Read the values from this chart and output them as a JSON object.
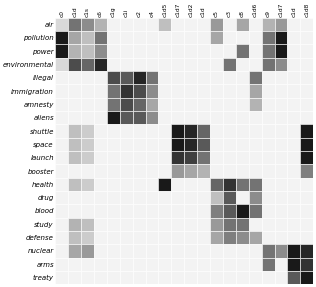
{
  "row_labels": [
    "air",
    "pollution",
    "power",
    "environmental",
    "illegal",
    "immigration",
    "amnesty",
    "aliens",
    "shuttle",
    "space",
    "launch",
    "booster",
    "health",
    "drug",
    "blood",
    "study",
    "defense",
    "nuclear",
    "arms",
    "treaty"
  ],
  "col_labels_display": [
    "c0",
    "c1d",
    "c1s",
    "c6",
    "c1g",
    "c1i",
    "c2",
    "c4",
    "c1d5",
    "c1d7",
    "c1d2",
    "c1d",
    "c5",
    "c3",
    "c8",
    "c1d6",
    "c9",
    "c1d7",
    "c1d",
    "c1d8"
  ],
  "matrix": [
    [
      0.15,
      0.55,
      0.45,
      0.3,
      0.05,
      0.05,
      0.05,
      0.05,
      0.25,
      0.05,
      0.05,
      0.05,
      0.4,
      0.05,
      0.35,
      0.05,
      0.3,
      0.4,
      0.05,
      0.05
    ],
    [
      0.9,
      0.35,
      0.25,
      0.55,
      0.05,
      0.05,
      0.05,
      0.05,
      0.05,
      0.05,
      0.05,
      0.05,
      0.35,
      0.05,
      0.05,
      0.05,
      0.55,
      0.9,
      0.05,
      0.05
    ],
    [
      0.9,
      0.3,
      0.25,
      0.45,
      0.05,
      0.05,
      0.05,
      0.05,
      0.05,
      0.05,
      0.05,
      0.05,
      0.05,
      0.05,
      0.55,
      0.05,
      0.55,
      0.9,
      0.05,
      0.05
    ],
    [
      0.15,
      0.7,
      0.6,
      0.85,
      0.05,
      0.05,
      0.05,
      0.05,
      0.05,
      0.05,
      0.05,
      0.05,
      0.05,
      0.55,
      0.05,
      0.05,
      0.55,
      0.45,
      0.05,
      0.05
    ],
    [
      0.05,
      0.05,
      0.05,
      0.05,
      0.7,
      0.65,
      0.85,
      0.55,
      0.05,
      0.05,
      0.05,
      0.05,
      0.05,
      0.05,
      0.05,
      0.55,
      0.05,
      0.05,
      0.05,
      0.05
    ],
    [
      0.05,
      0.05,
      0.05,
      0.05,
      0.55,
      0.8,
      0.7,
      0.45,
      0.05,
      0.05,
      0.05,
      0.05,
      0.05,
      0.05,
      0.05,
      0.35,
      0.05,
      0.05,
      0.05,
      0.05
    ],
    [
      0.05,
      0.05,
      0.05,
      0.05,
      0.55,
      0.7,
      0.6,
      0.35,
      0.05,
      0.05,
      0.05,
      0.05,
      0.05,
      0.05,
      0.05,
      0.3,
      0.05,
      0.05,
      0.05,
      0.05
    ],
    [
      0.05,
      0.05,
      0.05,
      0.05,
      0.9,
      0.65,
      0.65,
      0.45,
      0.05,
      0.05,
      0.05,
      0.05,
      0.05,
      0.05,
      0.05,
      0.05,
      0.05,
      0.05,
      0.05,
      0.05
    ],
    [
      0.05,
      0.25,
      0.2,
      0.05,
      0.05,
      0.05,
      0.05,
      0.05,
      0.05,
      0.9,
      0.85,
      0.6,
      0.05,
      0.05,
      0.05,
      0.05,
      0.05,
      0.05,
      0.05,
      0.9
    ],
    [
      0.05,
      0.25,
      0.2,
      0.05,
      0.05,
      0.05,
      0.05,
      0.05,
      0.05,
      0.9,
      0.85,
      0.65,
      0.05,
      0.05,
      0.05,
      0.05,
      0.05,
      0.05,
      0.05,
      0.9
    ],
    [
      0.05,
      0.25,
      0.2,
      0.05,
      0.05,
      0.05,
      0.05,
      0.05,
      0.05,
      0.8,
      0.75,
      0.55,
      0.05,
      0.05,
      0.05,
      0.05,
      0.05,
      0.05,
      0.05,
      0.9
    ],
    [
      0.05,
      0.05,
      0.05,
      0.05,
      0.05,
      0.05,
      0.05,
      0.05,
      0.05,
      0.4,
      0.35,
      0.3,
      0.05,
      0.05,
      0.05,
      0.05,
      0.05,
      0.05,
      0.05,
      0.5
    ],
    [
      0.05,
      0.25,
      0.2,
      0.05,
      0.05,
      0.05,
      0.05,
      0.05,
      0.9,
      0.05,
      0.05,
      0.05,
      0.6,
      0.8,
      0.55,
      0.55,
      0.05,
      0.05,
      0.05,
      0.05
    ],
    [
      0.05,
      0.05,
      0.05,
      0.05,
      0.05,
      0.05,
      0.05,
      0.05,
      0.05,
      0.05,
      0.05,
      0.05,
      0.25,
      0.65,
      0.05,
      0.45,
      0.05,
      0.05,
      0.05,
      0.05
    ],
    [
      0.05,
      0.05,
      0.05,
      0.05,
      0.05,
      0.05,
      0.05,
      0.05,
      0.05,
      0.05,
      0.05,
      0.05,
      0.5,
      0.65,
      0.9,
      0.55,
      0.05,
      0.05,
      0.05,
      0.05
    ],
    [
      0.05,
      0.3,
      0.25,
      0.05,
      0.05,
      0.05,
      0.05,
      0.05,
      0.05,
      0.05,
      0.05,
      0.05,
      0.4,
      0.55,
      0.55,
      0.05,
      0.05,
      0.05,
      0.05,
      0.05
    ],
    [
      0.05,
      0.25,
      0.2,
      0.05,
      0.05,
      0.05,
      0.05,
      0.05,
      0.05,
      0.05,
      0.05,
      0.05,
      0.35,
      0.5,
      0.45,
      0.35,
      0.05,
      0.05,
      0.05,
      0.05
    ],
    [
      0.05,
      0.35,
      0.4,
      0.05,
      0.05,
      0.05,
      0.05,
      0.05,
      0.05,
      0.05,
      0.05,
      0.05,
      0.05,
      0.05,
      0.05,
      0.05,
      0.55,
      0.45,
      0.9,
      0.85
    ],
    [
      0.05,
      0.05,
      0.05,
      0.05,
      0.05,
      0.05,
      0.05,
      0.05,
      0.05,
      0.05,
      0.05,
      0.05,
      0.05,
      0.05,
      0.05,
      0.05,
      0.55,
      0.05,
      0.9,
      0.8
    ],
    [
      0.05,
      0.05,
      0.05,
      0.05,
      0.05,
      0.05,
      0.05,
      0.05,
      0.05,
      0.05,
      0.05,
      0.05,
      0.05,
      0.05,
      0.05,
      0.05,
      0.05,
      0.05,
      0.65,
      0.9
    ]
  ],
  "figsize": [
    3.16,
    2.87
  ],
  "dpi": 100,
  "background_color": "#ffffff",
  "row_font_size": 5.0,
  "col_font_size": 4.2
}
